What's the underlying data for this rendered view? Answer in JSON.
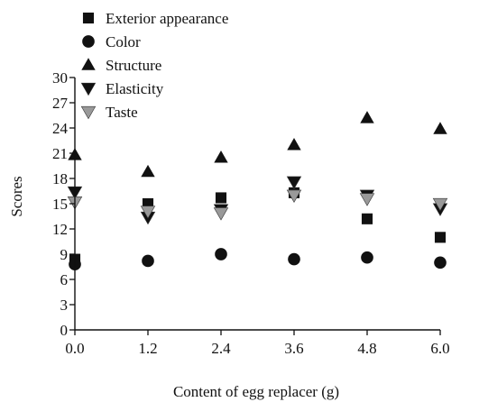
{
  "chart_data": {
    "type": "scatter",
    "title": "",
    "xlabel": "Content of egg replacer (g)",
    "ylabel": "Scores",
    "xlim": [
      0,
      6
    ],
    "ylim": [
      0,
      30
    ],
    "xticks": [
      "0.0",
      "1.2",
      "2.4",
      "3.6",
      "4.8",
      "6.0"
    ],
    "yticks": [
      "0",
      "3",
      "6",
      "9",
      "12",
      "15",
      "18",
      "21",
      "24",
      "27",
      "30"
    ],
    "grid": false,
    "legend_position": "top-left",
    "x": [
      0.0,
      1.2,
      2.4,
      3.6,
      4.8,
      6.0
    ],
    "series": [
      {
        "name": "Exterior appearance",
        "marker": "square",
        "color": "#111111",
        "values": [
          8.4,
          15.0,
          15.7,
          16.3,
          13.2,
          11.0
        ]
      },
      {
        "name": "Color",
        "marker": "circle",
        "color": "#111111",
        "values": [
          7.8,
          8.2,
          9.0,
          8.4,
          8.6,
          8.0
        ]
      },
      {
        "name": "Structure",
        "marker": "triangle-up",
        "color": "#111111",
        "values": [
          20.8,
          18.8,
          20.5,
          22.0,
          25.2,
          23.9
        ]
      },
      {
        "name": "Elasticity",
        "marker": "triangle-down",
        "color": "#111111",
        "values": [
          16.4,
          13.4,
          14.3,
          17.6,
          16.0,
          14.4
        ]
      },
      {
        "name": "Taste",
        "marker": "triangle-down",
        "color": "#999999",
        "values": [
          15.2,
          14.1,
          13.9,
          16.0,
          15.6,
          15.0
        ]
      }
    ]
  }
}
